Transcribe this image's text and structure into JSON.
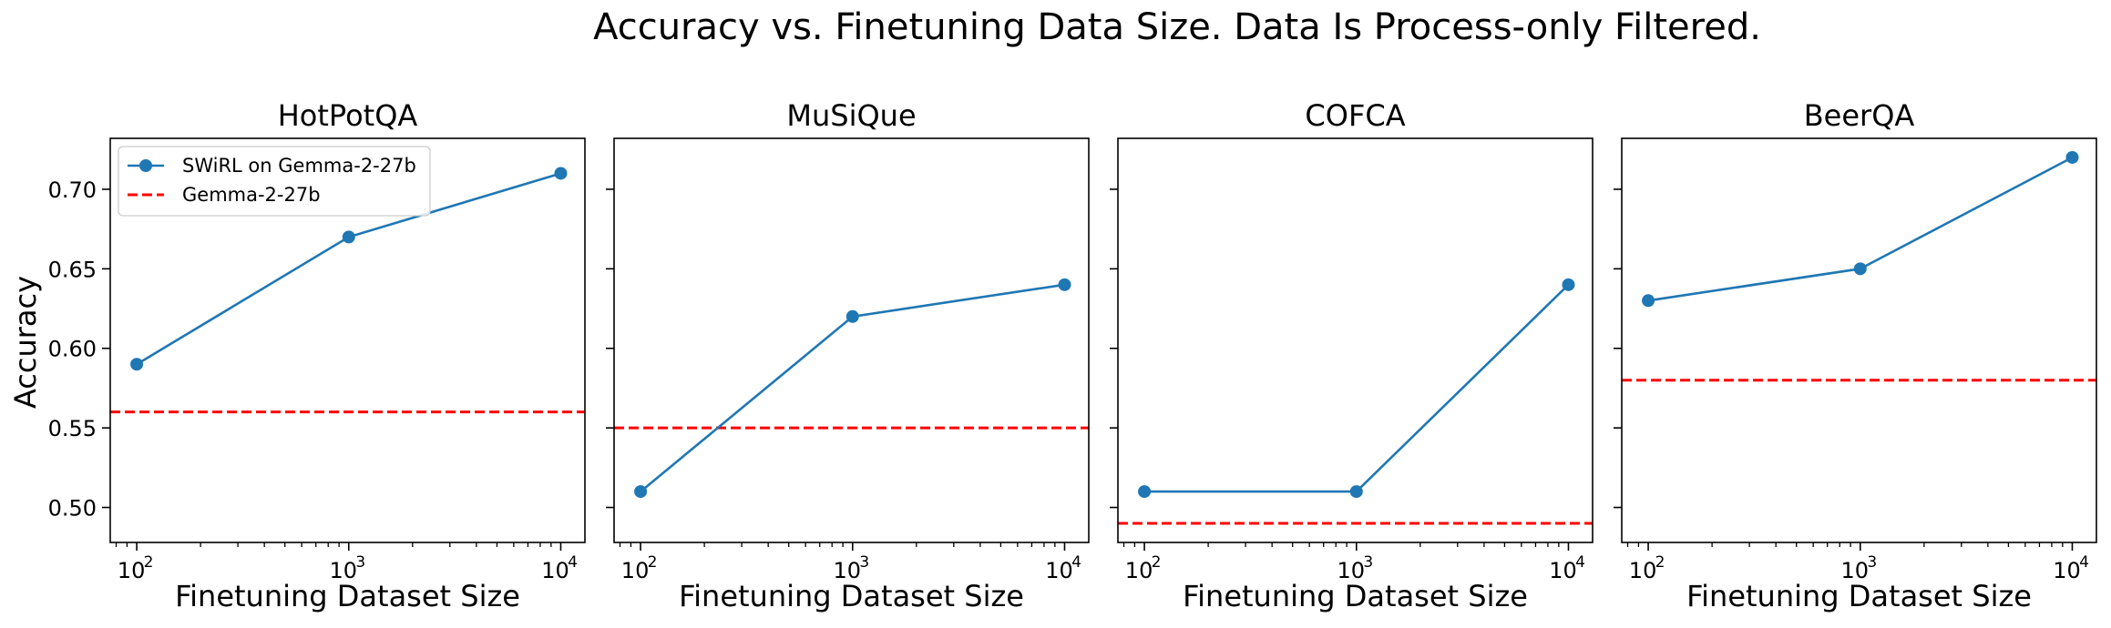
{
  "figure": {
    "title": "Accuracy vs. Finetuning Data Size. Data Is Process-only Filtered."
  },
  "shared": {
    "xlabel": "Finetuning Dataset Size",
    "ylabel": "Accuracy",
    "x_tick_base": "10",
    "x_tick_exponents": [
      "2",
      "3",
      "4"
    ],
    "y_tick_labels": [
      "0.50",
      "0.55",
      "0.60",
      "0.65",
      "0.70"
    ],
    "legend": {
      "series_label": "SWiRL on Gemma-2-27b",
      "baseline_label": "Gemma-2-27b",
      "placement": "upper-left of first panel"
    },
    "colors": {
      "series": "#1f77b4",
      "baseline": "#ff0000"
    }
  },
  "chart_data": [
    {
      "type": "line",
      "title": "HotPotQA",
      "x_scale": "log",
      "x": [
        100,
        1000,
        10000
      ],
      "series": [
        {
          "name": "SWiRL on Gemma-2-27b",
          "values": [
            0.59,
            0.67,
            0.71
          ]
        }
      ],
      "baseline": {
        "name": "Gemma-2-27b",
        "value": 0.56
      },
      "xlim": [
        75,
        13000
      ],
      "ylim": [
        0.478,
        0.732
      ],
      "grid": false
    },
    {
      "type": "line",
      "title": "MuSiQue",
      "x_scale": "log",
      "x": [
        100,
        1000,
        10000
      ],
      "series": [
        {
          "name": "SWiRL on Gemma-2-27b",
          "values": [
            0.51,
            0.62,
            0.64
          ]
        }
      ],
      "baseline": {
        "name": "Gemma-2-27b",
        "value": 0.55
      },
      "xlim": [
        75,
        13000
      ],
      "ylim": [
        0.478,
        0.732
      ],
      "grid": false
    },
    {
      "type": "line",
      "title": "COFCA",
      "x_scale": "log",
      "x": [
        100,
        1000,
        10000
      ],
      "series": [
        {
          "name": "SWiRL on Gemma-2-27b",
          "values": [
            0.51,
            0.51,
            0.64
          ]
        }
      ],
      "baseline": {
        "name": "Gemma-2-27b",
        "value": 0.49
      },
      "xlim": [
        75,
        13000
      ],
      "ylim": [
        0.478,
        0.732
      ],
      "grid": false
    },
    {
      "type": "line",
      "title": "BeerQA",
      "x_scale": "log",
      "x": [
        100,
        1000,
        10000
      ],
      "series": [
        {
          "name": "SWiRL on Gemma-2-27b",
          "values": [
            0.63,
            0.65,
            0.72
          ]
        }
      ],
      "baseline": {
        "name": "Gemma-2-27b",
        "value": 0.58
      },
      "xlim": [
        75,
        13000
      ],
      "ylim": [
        0.478,
        0.732
      ],
      "grid": false
    }
  ]
}
